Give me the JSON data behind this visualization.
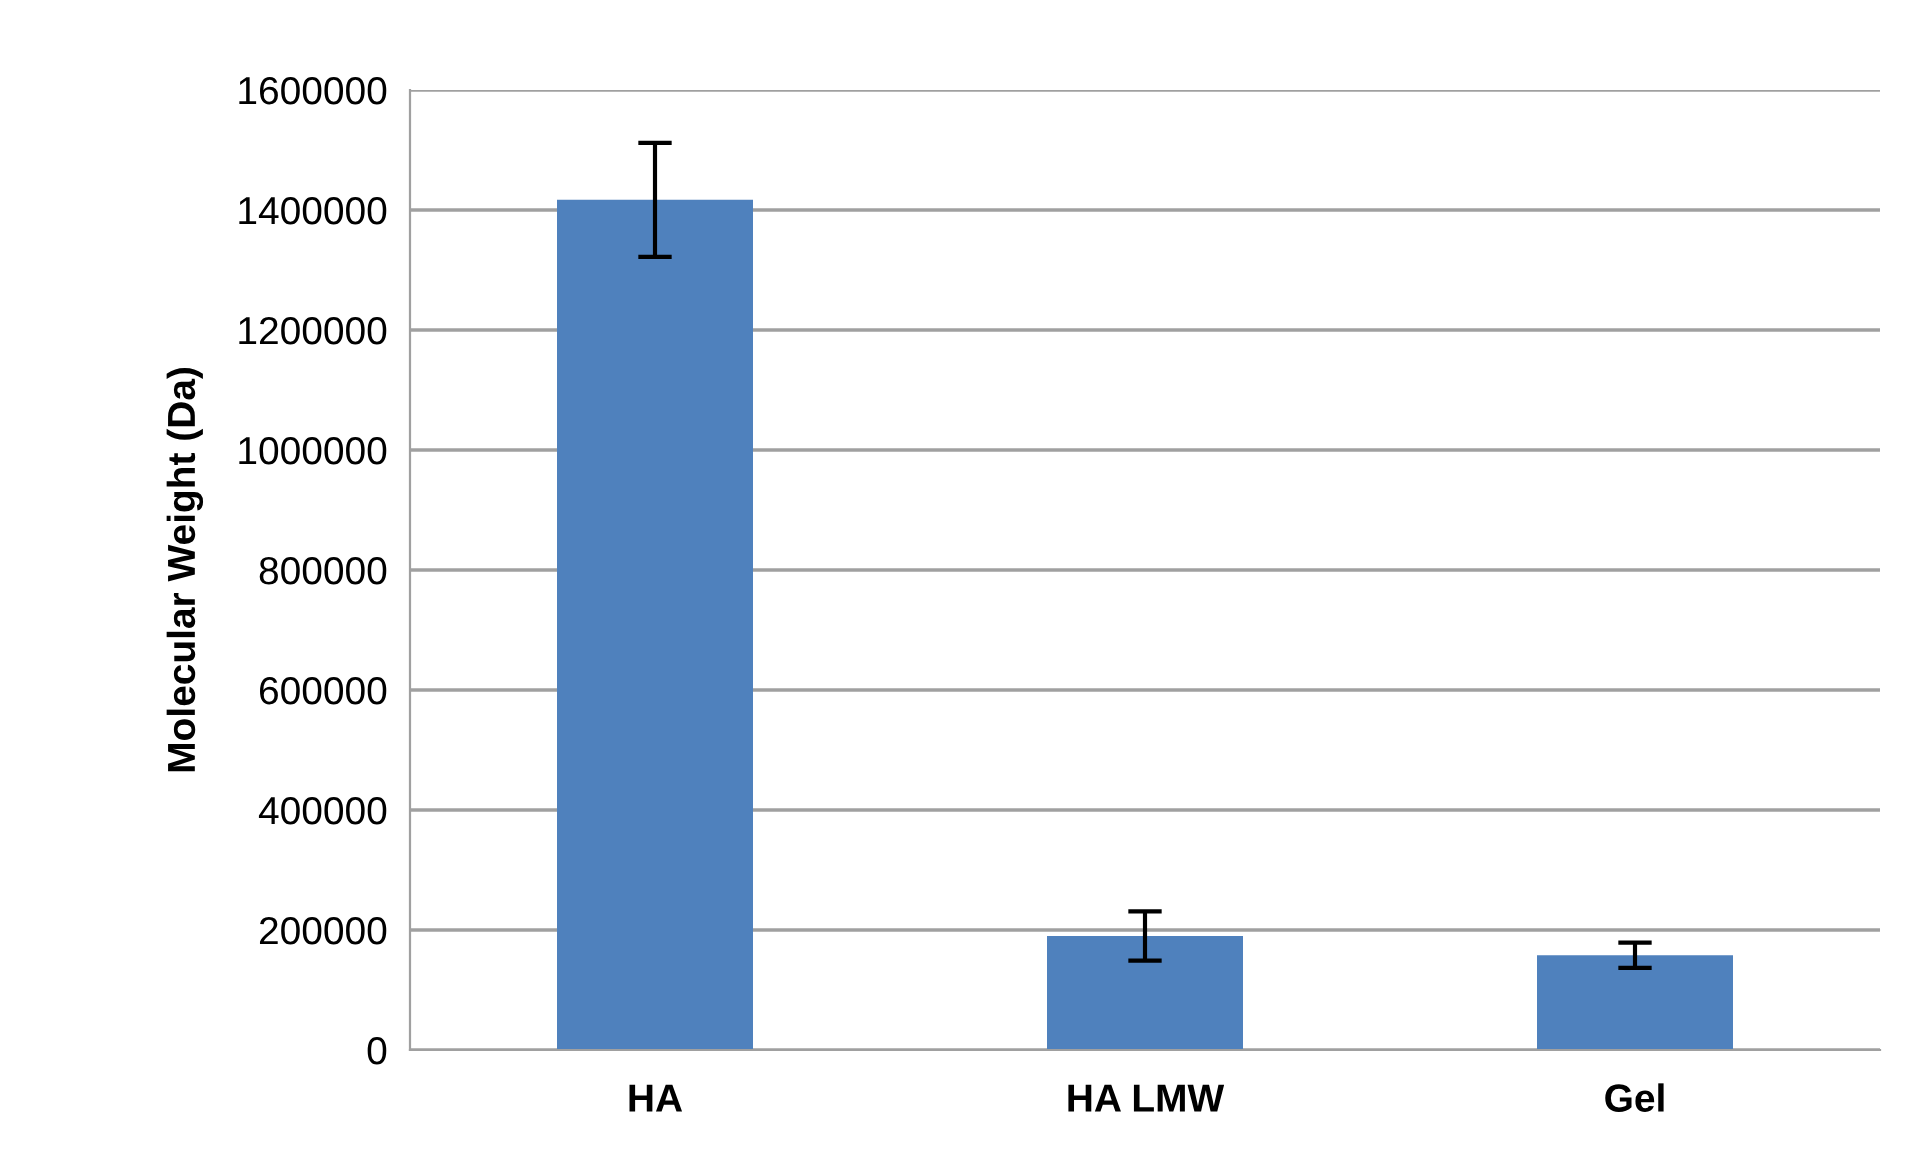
{
  "chart_data": {
    "type": "bar",
    "ylabel": "Molecular Weight (Da)",
    "categories": [
      "HA",
      "HA LMW",
      "Gel"
    ],
    "series": [
      {
        "color": "#4f81bd",
        "values": [
          1417000,
          190000,
          158000
        ],
        "errors": [
          95000,
          41000,
          21000
        ]
      }
    ],
    "ylim": [
      0,
      1600000
    ],
    "yticks": [
      0,
      200000,
      400000,
      600000,
      800000,
      1000000,
      1200000,
      1400000,
      1600000
    ],
    "grid": "y",
    "legend": false
  }
}
